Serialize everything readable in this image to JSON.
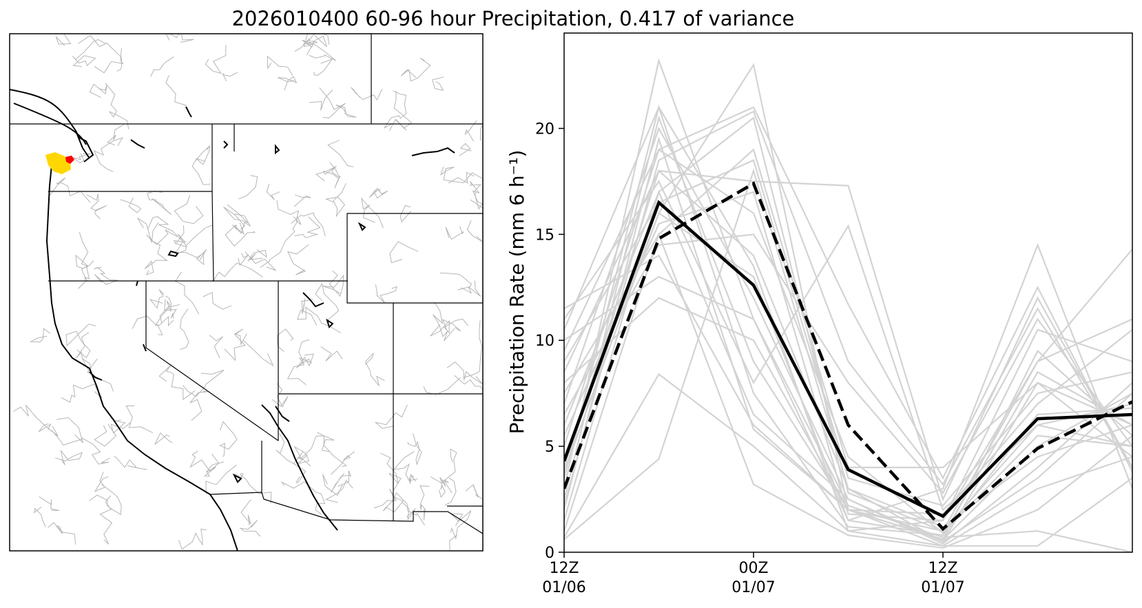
{
  "title": "2026010400 60-96 hour Precipitation, 0.417 of variance",
  "colors": {
    "ensemble": "#d3d3d3",
    "mean": "#000000",
    "highlight_yellow": "#ffd700",
    "highlight_red": "#ff0000",
    "basin_lines": "#b5b5b5",
    "borders": "#000000"
  },
  "map": {
    "region": "Western United States",
    "highlighted_area": "Olympic Peninsula, Washington"
  },
  "chart_data": {
    "type": "line",
    "title": "",
    "xlabel": "",
    "ylabel": "Precipitation Rate (mm 6 h⁻¹)",
    "ylim": [
      0,
      24.5
    ],
    "yticks": [
      0,
      5,
      10,
      15,
      20
    ],
    "x": [
      0,
      1,
      2,
      3,
      4,
      5,
      6
    ],
    "xticks": [
      {
        "x": 0,
        "line1": "12Z",
        "line2": "01/06"
      },
      {
        "x": 2,
        "line1": "00Z",
        "line2": "01/07"
      },
      {
        "x": 4,
        "line1": "12Z",
        "line2": "01/07"
      }
    ],
    "grid": false,
    "series": [
      {
        "style": "solid",
        "color": "#000000",
        "values": [
          4.3,
          16.5,
          12.6,
          3.9,
          1.7,
          6.3,
          6.5
        ]
      },
      {
        "style": "dashed",
        "color": "#000000",
        "values": [
          3.0,
          14.8,
          17.4,
          6.0,
          1.1,
          4.9,
          7.1
        ]
      }
    ],
    "ensemble_members": [
      [
        0.6,
        4.4,
        18.0,
        3.0,
        0.5,
        8.0,
        6.0
      ],
      [
        0.7,
        8.4,
        5.0,
        1.0,
        0.3,
        3.0,
        4.5
      ],
      [
        1.0,
        15.0,
        3.2,
        0.8,
        0.2,
        2.0,
        5.5
      ],
      [
        1.5,
        17.0,
        6.5,
        2.5,
        0.4,
        4.0,
        8.0
      ],
      [
        2.0,
        19.5,
        5.8,
        2.0,
        0.6,
        5.0,
        7.5
      ],
      [
        2.5,
        20.5,
        9.0,
        2.0,
        1.0,
        6.0,
        5.0
      ],
      [
        3.0,
        23.2,
        11.0,
        1.5,
        3.0,
        14.5,
        3.0
      ],
      [
        3.5,
        21.0,
        7.5,
        1.2,
        0.8,
        6.5,
        6.8
      ],
      [
        4.0,
        18.0,
        17.5,
        17.3,
        2.5,
        12.0,
        4.0
      ],
      [
        4.5,
        16.0,
        23.0,
        2.0,
        0.6,
        9.5,
        5.5
      ],
      [
        5.0,
        19.0,
        21.0,
        11.7,
        3.5,
        12.5,
        3.8
      ],
      [
        5.5,
        15.5,
        17.0,
        1.8,
        1.5,
        10.5,
        9.0
      ],
      [
        6.0,
        17.0,
        20.5,
        2.8,
        1.0,
        9.0,
        11.0
      ],
      [
        6.5,
        14.5,
        15.0,
        8.0,
        2.8,
        11.0,
        5.0
      ],
      [
        7.0,
        20.0,
        12.0,
        2.5,
        0.5,
        3.5,
        7.5
      ],
      [
        7.5,
        15.0,
        19.0,
        4.0,
        4.0,
        8.0,
        4.5
      ],
      [
        8.0,
        12.0,
        10.0,
        2.0,
        1.8,
        7.0,
        10.5
      ],
      [
        8.5,
        18.0,
        14.0,
        3.0,
        1.2,
        4.5,
        6.0
      ],
      [
        9.0,
        16.5,
        18.5,
        3.5,
        2.2,
        7.5,
        8.5
      ],
      [
        9.5,
        19.0,
        16.0,
        4.5,
        0.9,
        5.5,
        5.0
      ],
      [
        10.0,
        13.0,
        11.0,
        2.2,
        0.7,
        1.0,
        0.0
      ],
      [
        10.5,
        21.0,
        13.5,
        1.0,
        1.5,
        9.0,
        14.3
      ],
      [
        11.0,
        17.5,
        8.0,
        15.4,
        2.0,
        6.0,
        7.0
      ],
      [
        11.5,
        14.0,
        6.0,
        2.0,
        0.3,
        0.3,
        3.5
      ],
      [
        2.2,
        18.5,
        20.8,
        9.0,
        3.2,
        11.5,
        4.0
      ],
      [
        3.8,
        16.0,
        13.0,
        1.5,
        0.8,
        8.5,
        6.0
      ]
    ]
  }
}
